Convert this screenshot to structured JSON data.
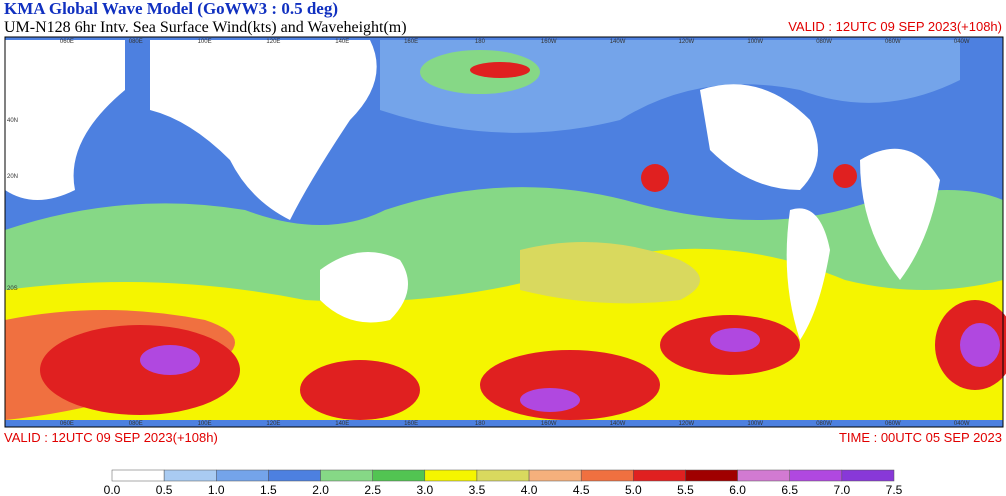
{
  "header": {
    "title": "KMA  Global Wave Model (GoWW3 : 0.5 deg)",
    "subtitle": "UM-N128  6hr Intv. Sea Surface Wind(kts) and Waveheight(m)",
    "valid": "VALID : 12UTC 09 SEP 2023(+108h)"
  },
  "map": {
    "lon_labels": [
      "060E",
      "080E",
      "100E",
      "120E",
      "140E",
      "160E",
      "180",
      "160W",
      "140W",
      "120W",
      "100W",
      "080W",
      "060W",
      "040W"
    ],
    "lat_labels": [
      "40N",
      "20N",
      "20S"
    ]
  },
  "footer": {
    "valid": "VALID : 12UTC 09 SEP 2023(+108h)",
    "time": "TIME : 00UTC 05 SEP 2023"
  },
  "colorbar": {
    "labels": [
      "0.0",
      "0.5",
      "1.0",
      "1.5",
      "2.0",
      "2.5",
      "3.0",
      "3.5",
      "4.0",
      "4.5",
      "5.0",
      "5.5",
      "6.0",
      "6.5",
      "7.0",
      "7.5"
    ],
    "colors": [
      "#ffffff",
      "#a9cbf2",
      "#74a4ea",
      "#4d80e0",
      "#86d886",
      "#52c452",
      "#f5f500",
      "#d9d95e",
      "#f5b07c",
      "#f07040",
      "#e02020",
      "#a00000",
      "#d27ad2",
      "#b048e0",
      "#8838d8"
    ]
  }
}
